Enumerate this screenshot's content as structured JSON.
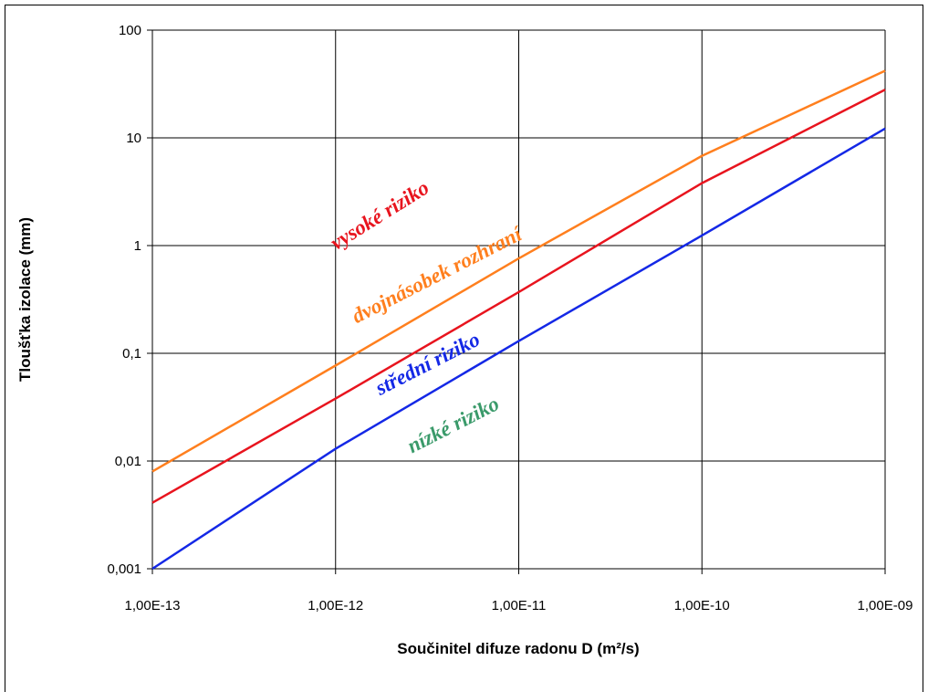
{
  "chart_data": {
    "type": "line",
    "xlabel": "Součinitel difuze radonu D (m²/s)",
    "ylabel": "Tloušťka izolace (mm)",
    "x": [
      1e-13,
      1e-12,
      1e-11,
      1e-10,
      1e-09
    ],
    "series": [
      {
        "color": "#ff7f1e",
        "values": [
          0.008,
          0.077,
          0.76,
          6.8,
          42
        ]
      },
      {
        "color": "#e8141e",
        "values": [
          0.0041,
          0.038,
          0.37,
          3.8,
          28
        ]
      },
      {
        "color": "#1428e6",
        "values": [
          0.001,
          0.013,
          0.13,
          1.24,
          12.2
        ]
      }
    ],
    "xlim": [
      1e-13,
      1e-09
    ],
    "ylim": [
      0.001,
      100
    ],
    "xticks": [
      {
        "value": 1e-13,
        "label": "1,00E-13"
      },
      {
        "value": 1e-12,
        "label": "1,00E-12"
      },
      {
        "value": 1e-11,
        "label": "1,00E-11"
      },
      {
        "value": 1e-10,
        "label": "1,00E-10"
      },
      {
        "value": 1e-09,
        "label": "1,00E-09"
      }
    ],
    "yticks": [
      {
        "value": 0.001,
        "label": "0,001"
      },
      {
        "value": 0.01,
        "label": "0,01"
      },
      {
        "value": 0.1,
        "label": "0,1"
      },
      1,
      10,
      100
    ],
    "xscale": "log",
    "yscale": "log",
    "grid": true,
    "annotations": [
      {
        "text": "vysoké riziko",
        "color": "#e8141e"
      },
      {
        "text": "dvojnásobek rozhraní",
        "color": "#ff7f1e"
      },
      {
        "text": "střední riziko",
        "color": "#1428e6"
      },
      {
        "text": "nízké riziko",
        "color": "#3a9a6a"
      }
    ]
  }
}
